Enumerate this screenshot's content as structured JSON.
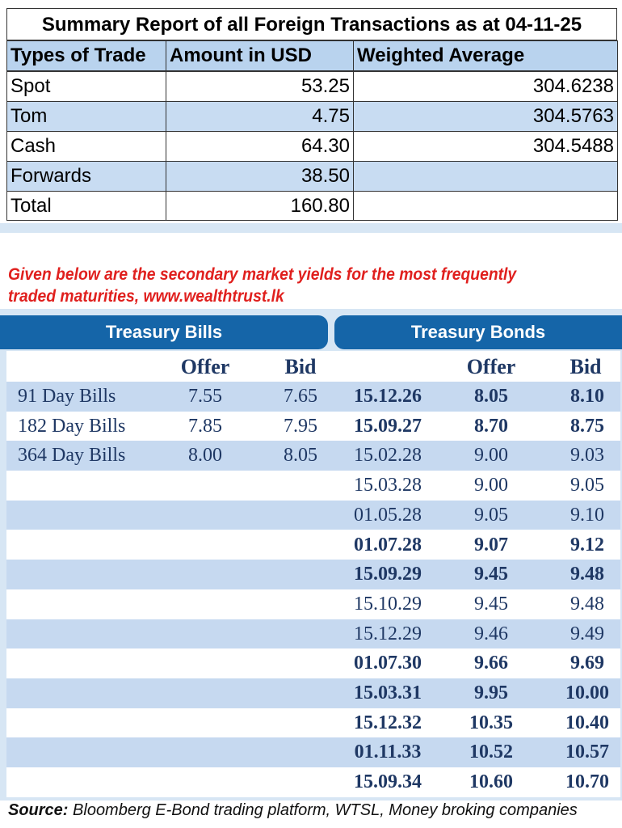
{
  "summary": {
    "title": "Summary Report of all Foreign Transactions as at 04-11-25",
    "headers": [
      "Types of Trade",
      "Amount in USD",
      "Weighted Average"
    ],
    "rows": [
      [
        "Spot",
        "53.25",
        "304.6238"
      ],
      [
        "Tom",
        "4.75",
        "304.5763"
      ],
      [
        "Cash",
        "64.30",
        "304.5488"
      ],
      [
        "Forwards",
        "38.50"
      ],
      [
        "Total",
        "160.80"
      ]
    ]
  },
  "note": "Given below are the secondary market yields for the most frequently traded maturities, www.wealthtrust.lk",
  "bills": {
    "title": "Treasury Bills",
    "headers": [
      "Offer",
      "Bid"
    ],
    "rows": [
      [
        "91 Day Bills",
        "7.55",
        "7.65"
      ],
      [
        "182 Day Bills",
        "7.85",
        "7.95"
      ],
      [
        "364 Day Bills",
        "8.00",
        "8.05"
      ]
    ]
  },
  "bonds": {
    "title": "Treasury Bonds",
    "headers": [
      "Offer",
      "Bid"
    ],
    "rows": [
      {
        "cells": [
          "15.12.26",
          "8.05",
          "8.10"
        ],
        "bold": true
      },
      {
        "cells": [
          "15.09.27",
          "8.70",
          "8.75"
        ],
        "bold": true
      },
      {
        "cells": [
          "15.02.28",
          "9.00",
          "9.03"
        ],
        "bold": false
      },
      {
        "cells": [
          "15.03.28",
          "9.00",
          "9.05"
        ],
        "bold": false
      },
      {
        "cells": [
          "01.05.28",
          "9.05",
          "9.10"
        ],
        "bold": false
      },
      {
        "cells": [
          "01.07.28",
          "9.07",
          "9.12"
        ],
        "bold": true
      },
      {
        "cells": [
          "15.09.29",
          "9.45",
          "9.48"
        ],
        "bold": true
      },
      {
        "cells": [
          "15.10.29",
          "9.45",
          "9.48"
        ],
        "bold": false
      },
      {
        "cells": [
          "15.12.29",
          "9.46",
          "9.49"
        ],
        "bold": false
      },
      {
        "cells": [
          "01.07.30",
          "9.66",
          "9.69"
        ],
        "bold": true
      },
      {
        "cells": [
          "15.03.31",
          "9.95",
          "10.00"
        ],
        "bold": true
      },
      {
        "cells": [
          "15.12.32",
          "10.35",
          "10.40"
        ],
        "bold": true
      },
      {
        "cells": [
          "01.11.33",
          "10.52",
          "10.57"
        ],
        "bold": true
      },
      {
        "cells": [
          "15.09.34",
          "10.60",
          "10.70"
        ],
        "bold": true
      }
    ]
  },
  "source": {
    "label": "Source:",
    "text": "Bloomberg E-Bond trading platform, WTSL, Money broking companies"
  }
}
